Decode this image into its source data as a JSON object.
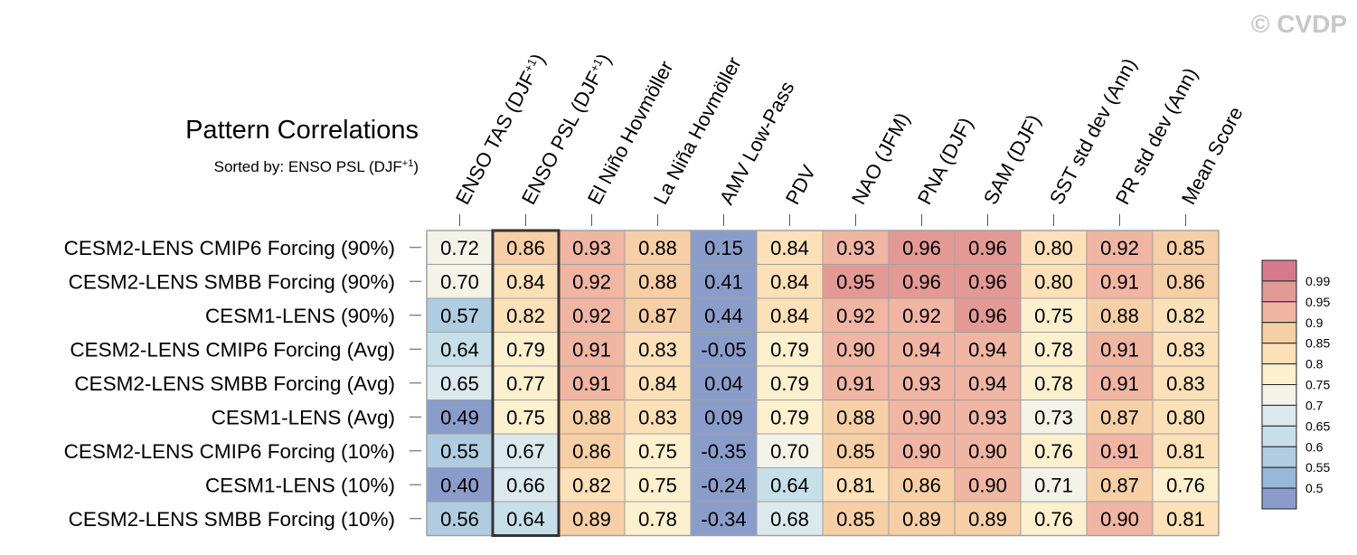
{
  "watermark": "© CVDP",
  "chart_data": {
    "type": "heatmap",
    "title": "Pattern Correlations",
    "subtitle_prefix": "Sorted by: ENSO PSL (DJF",
    "subtitle_sup": "+1",
    "subtitle_suffix": ")",
    "sorted_column_index": 1,
    "columns": [
      {
        "text": "ENSO TAS (DJF",
        "sup": "+1",
        "post": ")"
      },
      {
        "text": "ENSO PSL (DJF",
        "sup": "+1",
        "post": ")"
      },
      {
        "text": "El Niño Hovmöller",
        "sup": "",
        "post": ""
      },
      {
        "text": "La Niña Hovmöller",
        "sup": "",
        "post": ""
      },
      {
        "text": "AMV Low-Pass",
        "sup": "",
        "post": ""
      },
      {
        "text": "PDV",
        "sup": "",
        "post": ""
      },
      {
        "text": "NAO (JFM)",
        "sup": "",
        "post": ""
      },
      {
        "text": "PNA (DJF)",
        "sup": "",
        "post": ""
      },
      {
        "text": "SAM (DJF)",
        "sup": "",
        "post": ""
      },
      {
        "text": "SST std dev (Ann)",
        "sup": "",
        "post": ""
      },
      {
        "text": "PR std dev (Ann)",
        "sup": "",
        "post": ""
      },
      {
        "text": "Mean Score",
        "sup": "",
        "post": ""
      }
    ],
    "rows": [
      "CESM2-LENS CMIP6 Forcing (90%)",
      "CESM2-LENS SMBB Forcing (90%)",
      "CESM1-LENS (90%)",
      "CESM2-LENS CMIP6 Forcing (Avg)",
      "CESM2-LENS SMBB Forcing (Avg)",
      "CESM1-LENS (Avg)",
      "CESM2-LENS CMIP6 Forcing (10%)",
      "CESM1-LENS (10%)",
      "CESM2-LENS SMBB Forcing (10%)"
    ],
    "values": [
      [
        "0.72",
        "0.86",
        "0.93",
        "0.88",
        "0.15",
        "0.84",
        "0.93",
        "0.96",
        "0.96",
        "0.80",
        "0.92",
        "0.85"
      ],
      [
        "0.70",
        "0.84",
        "0.92",
        "0.88",
        "0.41",
        "0.84",
        "0.95",
        "0.96",
        "0.96",
        "0.80",
        "0.91",
        "0.86"
      ],
      [
        "0.57",
        "0.82",
        "0.92",
        "0.87",
        "0.44",
        "0.84",
        "0.92",
        "0.92",
        "0.96",
        "0.75",
        "0.88",
        "0.82"
      ],
      [
        "0.64",
        "0.79",
        "0.91",
        "0.83",
        "-0.05",
        "0.79",
        "0.90",
        "0.94",
        "0.94",
        "0.78",
        "0.91",
        "0.83"
      ],
      [
        "0.65",
        "0.77",
        "0.91",
        "0.84",
        "0.04",
        "0.79",
        "0.91",
        "0.93",
        "0.94",
        "0.78",
        "0.91",
        "0.83"
      ],
      [
        "0.49",
        "0.75",
        "0.88",
        "0.83",
        "0.09",
        "0.79",
        "0.88",
        "0.90",
        "0.93",
        "0.73",
        "0.87",
        "0.80"
      ],
      [
        "0.55",
        "0.67",
        "0.86",
        "0.75",
        "-0.35",
        "0.70",
        "0.85",
        "0.90",
        "0.90",
        "0.76",
        "0.91",
        "0.81"
      ],
      [
        "0.40",
        "0.66",
        "0.82",
        "0.75",
        "-0.24",
        "0.64",
        "0.81",
        "0.86",
        "0.90",
        "0.71",
        "0.87",
        "0.76"
      ],
      [
        "0.56",
        "0.64",
        "0.89",
        "0.78",
        "-0.34",
        "0.68",
        "0.85",
        "0.89",
        "0.89",
        "0.76",
        "0.90",
        "0.81"
      ]
    ],
    "colorbar": {
      "levels": [
        "0.99",
        "0.95",
        "0.9",
        "0.85",
        "0.8",
        "0.75",
        "0.7",
        "0.65",
        "0.6",
        "0.55",
        "0.5"
      ],
      "colors": [
        "#d57a8d",
        "#e39a95",
        "#f0b5a3",
        "#f7cfa6",
        "#fbe0b8",
        "#fdf0cf",
        "#f3f3e9",
        "#dbe9ef",
        "#c6dfe9",
        "#b0cce0",
        "#98b7d9",
        "#8a9dca"
      ]
    }
  }
}
